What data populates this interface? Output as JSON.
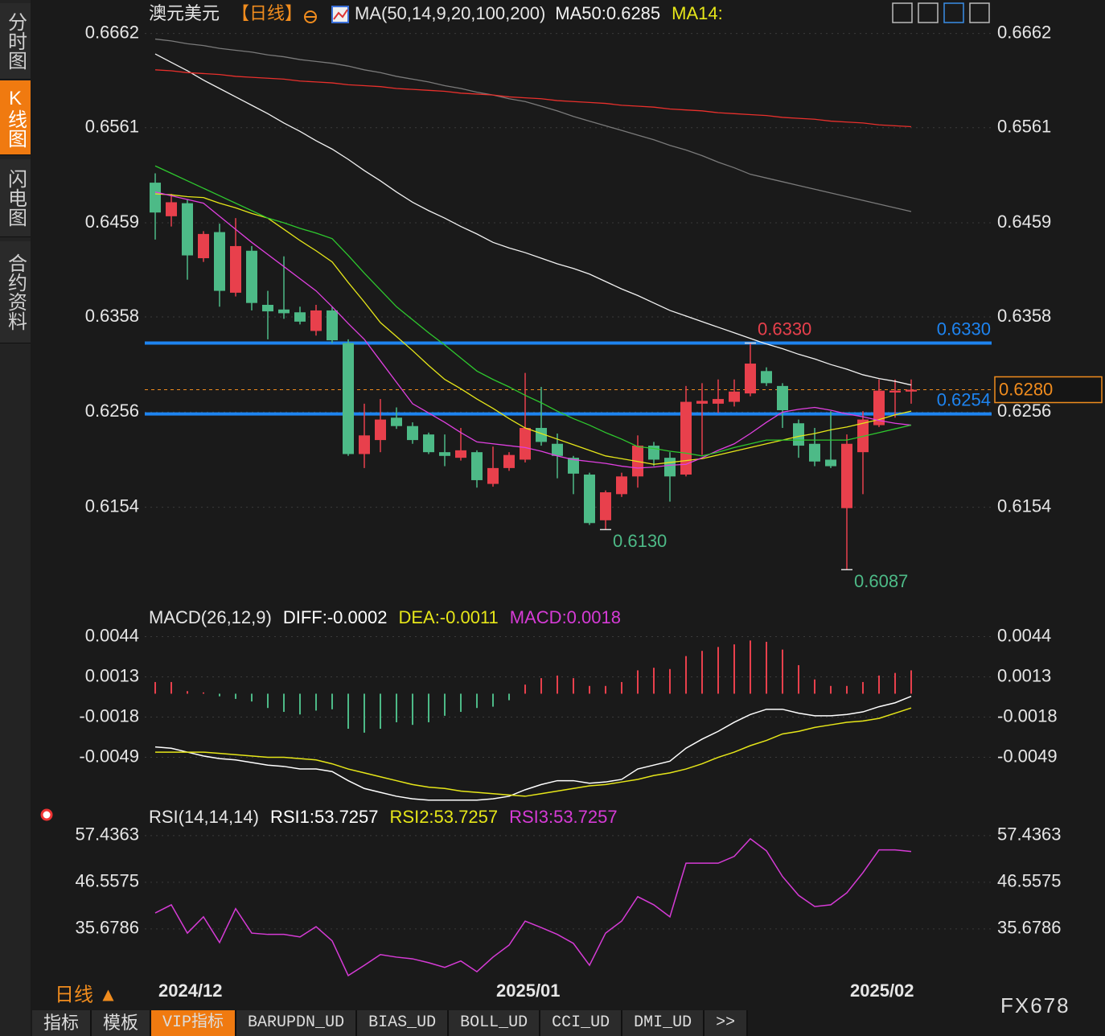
{
  "sidebar": {
    "tabs": [
      "分时图",
      "K线图",
      "闪电图",
      "合约资料"
    ]
  },
  "header": {
    "symbol": "澳元美元",
    "period": "【日线】",
    "indicator": "MA(50,14,9,20,100,200)"
  },
  "chart_data": [
    {
      "type": "candlestick",
      "up_color": "#e8404c",
      "down_color": "#4dba87",
      "categories": [
        "2024/12",
        null,
        null,
        null,
        null,
        null,
        null,
        null,
        null,
        null,
        null,
        null,
        null,
        null,
        null,
        null,
        null,
        null,
        null,
        null,
        null,
        "2025/01",
        null,
        null,
        null,
        null,
        null,
        null,
        null,
        null,
        null,
        null,
        null,
        null,
        null,
        null,
        null,
        null,
        null,
        null,
        null,
        null,
        null,
        "2025/02",
        null,
        null,
        null,
        null
      ],
      "open": [
        0.6502,
        0.6466,
        0.648,
        0.6421,
        0.6449,
        0.6384,
        0.6429,
        0.6371,
        0.6366,
        0.6363,
        0.6343,
        0.6365,
        0.633,
        0.6211,
        0.6226,
        0.625,
        0.6241,
        0.6232,
        0.6213,
        0.6207,
        0.6213,
        0.6179,
        0.6196,
        0.6205,
        0.6239,
        0.6222,
        0.6207,
        0.6189,
        0.614,
        0.6168,
        0.6187,
        0.622,
        0.6207,
        0.6189,
        0.6265,
        0.6265,
        0.6267,
        0.6276,
        0.63,
        0.6284,
        0.6244,
        0.6222,
        0.6205,
        0.6153,
        0.6213,
        0.6242,
        0.6277,
        0.6278
      ],
      "high": [
        0.6512,
        0.649,
        0.6484,
        0.645,
        0.6458,
        0.6464,
        0.6434,
        0.6386,
        0.6423,
        0.6369,
        0.6371,
        0.6369,
        0.6334,
        0.6265,
        0.627,
        0.6261,
        0.6245,
        0.6234,
        0.6232,
        0.6239,
        0.6215,
        0.6219,
        0.6213,
        0.6298,
        0.6283,
        0.6233,
        0.6209,
        0.6191,
        0.6172,
        0.6191,
        0.6231,
        0.6224,
        0.6213,
        0.6284,
        0.6287,
        0.6291,
        0.6291,
        0.633,
        0.6304,
        0.6287,
        0.6248,
        0.6239,
        0.6257,
        0.6232,
        0.6257,
        0.6291,
        0.6291,
        0.6291
      ],
      "low": [
        0.6441,
        0.6455,
        0.6398,
        0.6417,
        0.6369,
        0.638,
        0.6365,
        0.6334,
        0.6356,
        0.635,
        0.6338,
        0.633,
        0.6209,
        0.6196,
        0.6213,
        0.6238,
        0.6222,
        0.6211,
        0.6198,
        0.6204,
        0.6175,
        0.6176,
        0.6193,
        0.6202,
        0.622,
        0.6185,
        0.6168,
        0.6135,
        0.613,
        0.6165,
        0.6175,
        0.6198,
        0.616,
        0.6187,
        0.621,
        0.6255,
        0.6262,
        0.6273,
        0.6284,
        0.6239,
        0.6207,
        0.6198,
        0.6196,
        0.6087,
        0.6168,
        0.624,
        0.625,
        0.6265
      ],
      "close": [
        0.647,
        0.6481,
        0.6424,
        0.6447,
        0.6386,
        0.6434,
        0.6373,
        0.6364,
        0.6362,
        0.6353,
        0.6365,
        0.6333,
        0.6211,
        0.6231,
        0.6248,
        0.6241,
        0.6226,
        0.6213,
        0.6209,
        0.6215,
        0.6183,
        0.6196,
        0.621,
        0.6239,
        0.6224,
        0.6209,
        0.619,
        0.6137,
        0.617,
        0.6187,
        0.622,
        0.6205,
        0.6187,
        0.6267,
        0.6268,
        0.627,
        0.6278,
        0.6308,
        0.6287,
        0.6258,
        0.622,
        0.6203,
        0.6198,
        0.6222,
        0.6248,
        0.6279,
        0.6279,
        0.628
      ],
      "series": [
        {
          "name": "MA50:0.6285",
          "color": "#f2f2f2",
          "values": [
            0.664,
            0.6631,
            0.6622,
            0.6612,
            0.6603,
            0.6594,
            0.6585,
            0.6576,
            0.6566,
            0.6557,
            0.6547,
            0.6538,
            0.6527,
            0.6515,
            0.6504,
            0.6492,
            0.6481,
            0.6472,
            0.6464,
            0.6455,
            0.6447,
            0.6438,
            0.6432,
            0.6427,
            0.6421,
            0.6415,
            0.641,
            0.6404,
            0.6396,
            0.6388,
            0.6381,
            0.6373,
            0.6365,
            0.6359,
            0.6353,
            0.6347,
            0.6341,
            0.6335,
            0.6329,
            0.6324,
            0.6318,
            0.6313,
            0.6307,
            0.6302,
            0.6296,
            0.6292,
            0.6289,
            0.6285
          ]
        },
        {
          "name": "MA14:",
          "color": "#e6e619",
          "values": [
            0.649,
            0.6489,
            0.6487,
            0.6486,
            0.648,
            0.6475,
            0.6469,
            0.6464,
            0.6452,
            0.644,
            0.6429,
            0.6417,
            0.6395,
            0.6374,
            0.6352,
            0.6337,
            0.6322,
            0.6306,
            0.6291,
            0.6281,
            0.627,
            0.626,
            0.6249,
            0.6239,
            0.6233,
            0.6227,
            0.6221,
            0.6215,
            0.6209,
            0.6206,
            0.6203,
            0.62,
            0.6202,
            0.6204,
            0.6206,
            0.621,
            0.6214,
            0.6218,
            0.6222,
            0.6226,
            0.623,
            0.6233,
            0.6237,
            0.624,
            0.6244,
            0.6248,
            0.6253,
            0.6257
          ]
        },
        {
          "color": "#e040e0",
          "values": [
            0.6492,
            0.6488,
            0.6484,
            0.648,
            0.6466,
            0.6452,
            0.6438,
            0.6425,
            0.6412,
            0.6399,
            0.6386,
            0.6369,
            0.6351,
            0.6334,
            0.6311,
            0.6288,
            0.6265,
            0.6255,
            0.6245,
            0.6234,
            0.6224,
            0.6222,
            0.622,
            0.6218,
            0.6214,
            0.6209,
            0.6205,
            0.6203,
            0.6201,
            0.6198,
            0.6196,
            0.6197,
            0.6199,
            0.62,
            0.6207,
            0.6215,
            0.6222,
            0.6233,
            0.6245,
            0.6256,
            0.6259,
            0.6261,
            0.6258,
            0.6254,
            0.6251,
            0.6247,
            0.6244,
            0.6242
          ]
        },
        {
          "color": "#2ec82e",
          "values": [
            0.652,
            0.6512,
            0.6504,
            0.6496,
            0.6488,
            0.648,
            0.6472,
            0.6464,
            0.6459,
            0.6453,
            0.6448,
            0.6442,
            0.6424,
            0.6405,
            0.6387,
            0.6369,
            0.6355,
            0.6341,
            0.6328,
            0.6314,
            0.63,
            0.6291,
            0.6283,
            0.6274,
            0.6266,
            0.6257,
            0.6249,
            0.6242,
            0.6234,
            0.6227,
            0.6219,
            0.6217,
            0.6214,
            0.6212,
            0.6209,
            0.6213,
            0.6218,
            0.6222,
            0.6226,
            0.6226,
            0.6226,
            0.6226,
            0.6226,
            0.6226,
            0.623,
            0.6234,
            0.6238,
            0.6242
          ]
        },
        {
          "color": "#7a7a7a",
          "values": [
            0.6656,
            0.6654,
            0.6651,
            0.6649,
            0.6646,
            0.6644,
            0.6642,
            0.6639,
            0.6637,
            0.6634,
            0.6632,
            0.663,
            0.6627,
            0.6623,
            0.662,
            0.6616,
            0.6613,
            0.661,
            0.6606,
            0.6603,
            0.6599,
            0.6596,
            0.6592,
            0.6589,
            0.6584,
            0.6579,
            0.6573,
            0.6568,
            0.6563,
            0.6558,
            0.6553,
            0.6548,
            0.6542,
            0.6537,
            0.6531,
            0.6524,
            0.6518,
            0.6511,
            0.6507,
            0.6503,
            0.6499,
            0.6495,
            0.6491,
            0.6487,
            0.6483,
            0.6479,
            0.6475,
            0.6471
          ]
        },
        {
          "color": "#e8302c",
          "values": [
            0.6623,
            0.6622,
            0.662,
            0.6619,
            0.6618,
            0.6616,
            0.6615,
            0.6614,
            0.6613,
            0.6611,
            0.661,
            0.6609,
            0.6607,
            0.6606,
            0.6605,
            0.6603,
            0.6602,
            0.6601,
            0.66,
            0.6598,
            0.6597,
            0.6596,
            0.6594,
            0.6593,
            0.6592,
            0.659,
            0.6589,
            0.6588,
            0.6587,
            0.6585,
            0.6584,
            0.6583,
            0.6581,
            0.658,
            0.6579,
            0.6577,
            0.6576,
            0.6575,
            0.6574,
            0.6572,
            0.6571,
            0.657,
            0.6568,
            0.6567,
            0.6566,
            0.6564,
            0.6563,
            0.6562
          ]
        }
      ],
      "levels": [
        {
          "value": 0.633,
          "label": "0.6330",
          "color": "#1e84f0"
        },
        {
          "value": 0.6254,
          "label": "0.6254",
          "color": "#1e84f0"
        }
      ],
      "annotations": [
        {
          "value": 0.633,
          "label": "0.6330",
          "color": "#e8404c"
        },
        {
          "value": 0.613,
          "label": "0.6130",
          "color": "#4dba87"
        },
        {
          "value": 0.6087,
          "label": "0.6087",
          "color": "#4dba87"
        }
      ],
      "last": {
        "value": 0.628,
        "label": "0.6280",
        "color": "#f08c1e"
      },
      "ylim": [
        0.6051,
        0.6672
      ],
      "yticks": [
        0.6662,
        0.6561,
        0.6459,
        0.6358,
        0.6256,
        0.6154
      ],
      "grid": true
    },
    {
      "type": "macd",
      "title": "MACD(26,12,9)",
      "up_color": "#e8404c",
      "down_color": "#4dba87",
      "series": [
        {
          "name": "DIFF:-0.0002",
          "color": "#ffffff",
          "values": [
            -0.0041,
            -0.0042,
            -0.0045,
            -0.0048,
            -0.005,
            -0.0051,
            -0.0053,
            -0.0055,
            -0.0056,
            -0.0058,
            -0.0058,
            -0.006,
            -0.0067,
            -0.0073,
            -0.0076,
            -0.0079,
            -0.0081,
            -0.0082,
            -0.0082,
            -0.0082,
            -0.0082,
            -0.0081,
            -0.0079,
            -0.0074,
            -0.007,
            -0.0067,
            -0.0067,
            -0.0069,
            -0.0068,
            -0.0066,
            -0.0058,
            -0.0055,
            -0.0052,
            -0.0042,
            -0.0035,
            -0.0029,
            -0.0022,
            -0.0016,
            -0.0012,
            -0.0012,
            -0.0015,
            -0.0017,
            -0.0017,
            -0.0016,
            -0.0014,
            -0.001,
            -0.0007,
            -0.0002
          ]
        },
        {
          "name": "DEA:-0.0011",
          "color": "#e6e619",
          "values": [
            -0.0045,
            -0.0045,
            -0.0045,
            -0.0045,
            -0.0046,
            -0.0047,
            -0.0048,
            -0.0049,
            -0.0049,
            -0.005,
            -0.0051,
            -0.0054,
            -0.0058,
            -0.0061,
            -0.0064,
            -0.0067,
            -0.007,
            -0.0072,
            -0.0073,
            -0.0075,
            -0.0076,
            -0.0077,
            -0.0078,
            -0.0079,
            -0.0077,
            -0.0075,
            -0.0073,
            -0.0071,
            -0.007,
            -0.0068,
            -0.0066,
            -0.0063,
            -0.0061,
            -0.0058,
            -0.0054,
            -0.0049,
            -0.0045,
            -0.004,
            -0.0036,
            -0.0031,
            -0.0029,
            -0.0026,
            -0.0024,
            -0.0022,
            -0.0021,
            -0.0019,
            -0.0015,
            -0.0011
          ]
        },
        {
          "name": "MACD:0.0018",
          "color": "#d63bd6",
          "values": [
            0.0009,
            0.0009,
            0.0002,
            0.0001,
            -0.0002,
            -0.0004,
            -0.0006,
            -0.0011,
            -0.0014,
            -0.0016,
            -0.0013,
            -0.0012,
            -0.0027,
            -0.003,
            -0.0027,
            -0.0022,
            -0.0024,
            -0.0022,
            -0.0017,
            -0.0014,
            -0.0011,
            -0.001,
            -0.0005,
            0.0007,
            0.0012,
            0.0014,
            0.0012,
            0.0006,
            0.0006,
            0.0009,
            0.0018,
            0.002,
            0.0019,
            0.0029,
            0.0033,
            0.0036,
            0.0038,
            0.0041,
            0.004,
            0.0034,
            0.0022,
            0.0011,
            0.0006,
            0.0006,
            0.0009,
            0.0014,
            0.0016,
            0.0018
          ]
        }
      ],
      "ylim": [
        -0.0084,
        0.0048
      ],
      "yticks": [
        0.0044,
        0.0013,
        -0.0018,
        -0.0049
      ],
      "grid": true
    },
    {
      "type": "line",
      "title": "RSI(14,14,14)",
      "legend": [
        {
          "name": "RSI1:53.7257",
          "color": "#ffffff"
        },
        {
          "name": "RSI2:53.7257",
          "color": "#e6e619"
        },
        {
          "name": "RSI3:53.7257",
          "color": "#d63bd6"
        }
      ],
      "color": "#d63bd6",
      "values": [
        39.4,
        41.3,
        34.7,
        38.5,
        32.5,
        40.4,
        34.7,
        34.4,
        34.4,
        33.8,
        36.2,
        32.9,
        24.8,
        27.2,
        29.7,
        29.1,
        28.7,
        27.8,
        26.7,
        28.2,
        25.7,
        29.1,
        31.9,
        37.5,
        36,
        34.4,
        32.3,
        27.2,
        34.7,
        37.5,
        43.2,
        41.3,
        38.5,
        51,
        51,
        51,
        52.6,
        56.7,
        53.9,
        47.9,
        43.5,
        40.9,
        41.3,
        44.1,
        48.8,
        54.1,
        54.1,
        53.7257
      ],
      "ylim": [
        24.4,
        59.1
      ],
      "yticks": [
        57.4363,
        46.5575,
        35.6786
      ],
      "grid": true
    }
  ],
  "footer": {
    "period": "日线 ▲",
    "tabs": [
      "指标",
      "模板",
      "VIP指标",
      "BARUPDN_UD",
      "BIAS_UD",
      "BOLL_UD",
      "CCI_UD",
      "DMI_UD",
      ">>"
    ],
    "brand": "FX678"
  }
}
